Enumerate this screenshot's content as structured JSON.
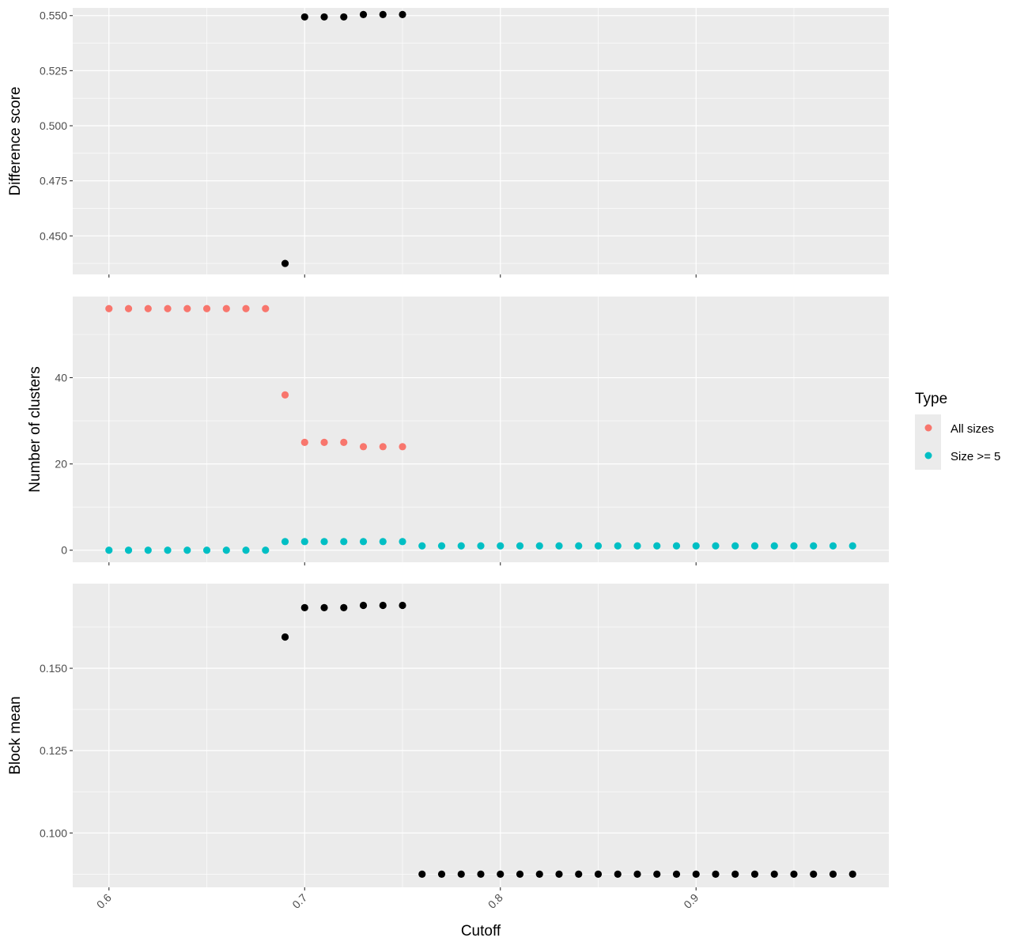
{
  "chart_data": [
    {
      "type": "scatter",
      "ylabel": "Difference score",
      "xlim": [
        0.5815,
        0.9985
      ],
      "ylim": [
        0.4325,
        0.5535
      ],
      "x_ticks": [
        0.6,
        0.7,
        0.8,
        0.9
      ],
      "y_ticks": [
        "0.450",
        "0.475",
        "0.500",
        "0.525",
        "0.550"
      ],
      "grid": true,
      "series": [
        {
          "color": "#000000",
          "x": [
            0.69,
            0.7,
            0.71,
            0.72,
            0.73,
            0.74,
            0.75
          ],
          "y": [
            0.4375,
            0.5494,
            0.5494,
            0.5494,
            0.5505,
            0.5505,
            0.5505
          ]
        }
      ]
    },
    {
      "type": "scatter",
      "ylabel": "Number of clusters",
      "xlim": [
        0.5815,
        0.9985
      ],
      "ylim": [
        -2.8,
        58.8
      ],
      "x_ticks": [
        0.6,
        0.7,
        0.8,
        0.9
      ],
      "y_ticks": [
        "0",
        "20",
        "40"
      ],
      "grid": true,
      "legend_position": "right",
      "legend_title": "Type",
      "series": [
        {
          "name": "All sizes",
          "color": "#F8766D",
          "x": [
            0.6,
            0.61,
            0.62,
            0.63,
            0.64,
            0.65,
            0.66,
            0.67,
            0.68,
            0.69,
            0.7,
            0.71,
            0.72,
            0.73,
            0.74,
            0.75
          ],
          "y": [
            56,
            56,
            56,
            56,
            56,
            56,
            56,
            56,
            56,
            36,
            25,
            25,
            25,
            24,
            24,
            24
          ]
        },
        {
          "name": "Size >= 5",
          "color": "#00BFC4",
          "x": [
            0.6,
            0.61,
            0.62,
            0.63,
            0.64,
            0.65,
            0.66,
            0.67,
            0.68,
            0.69,
            0.7,
            0.71,
            0.72,
            0.73,
            0.74,
            0.75,
            0.76,
            0.77,
            0.78,
            0.79,
            0.8,
            0.81,
            0.82,
            0.83,
            0.84,
            0.85,
            0.86,
            0.87,
            0.88,
            0.89,
            0.9,
            0.91,
            0.92,
            0.93,
            0.94,
            0.95,
            0.96,
            0.97,
            0.98
          ],
          "y": [
            0,
            0,
            0,
            0,
            0,
            0,
            0,
            0,
            0,
            2,
            2,
            2,
            2,
            2,
            2,
            2,
            1,
            1,
            1,
            1,
            1,
            1,
            1,
            1,
            1,
            1,
            1,
            1,
            1,
            1,
            1,
            1,
            1,
            1,
            1,
            1,
            1,
            1,
            1
          ]
        }
      ]
    },
    {
      "type": "scatter",
      "ylabel": "Block mean",
      "xlabel": "Cutoff",
      "xlim": [
        0.5815,
        0.9985
      ],
      "ylim": [
        0.0835,
        0.1757
      ],
      "x_ticks": [
        0.6,
        0.7,
        0.8,
        0.9
      ],
      "y_ticks": [
        "0.100",
        "0.125",
        "0.150"
      ],
      "grid": true,
      "series": [
        {
          "color": "#000000",
          "x": [
            0.69,
            0.7,
            0.71,
            0.72,
            0.73,
            0.74,
            0.75,
            0.76,
            0.77,
            0.78,
            0.79,
            0.8,
            0.81,
            0.82,
            0.83,
            0.84,
            0.85,
            0.86,
            0.87,
            0.88,
            0.89,
            0.9,
            0.91,
            0.92,
            0.93,
            0.94,
            0.95,
            0.96,
            0.97,
            0.98
          ],
          "y": [
            0.1595,
            0.1684,
            0.1684,
            0.1684,
            0.1691,
            0.1691,
            0.1691,
            0.0875,
            0.0875,
            0.0875,
            0.0875,
            0.0875,
            0.0875,
            0.0875,
            0.0875,
            0.0875,
            0.0875,
            0.0875,
            0.0875,
            0.0875,
            0.0875,
            0.0875,
            0.0875,
            0.0875,
            0.0875,
            0.0875,
            0.0875,
            0.0875,
            0.0875,
            0.0875
          ]
        }
      ]
    }
  ]
}
